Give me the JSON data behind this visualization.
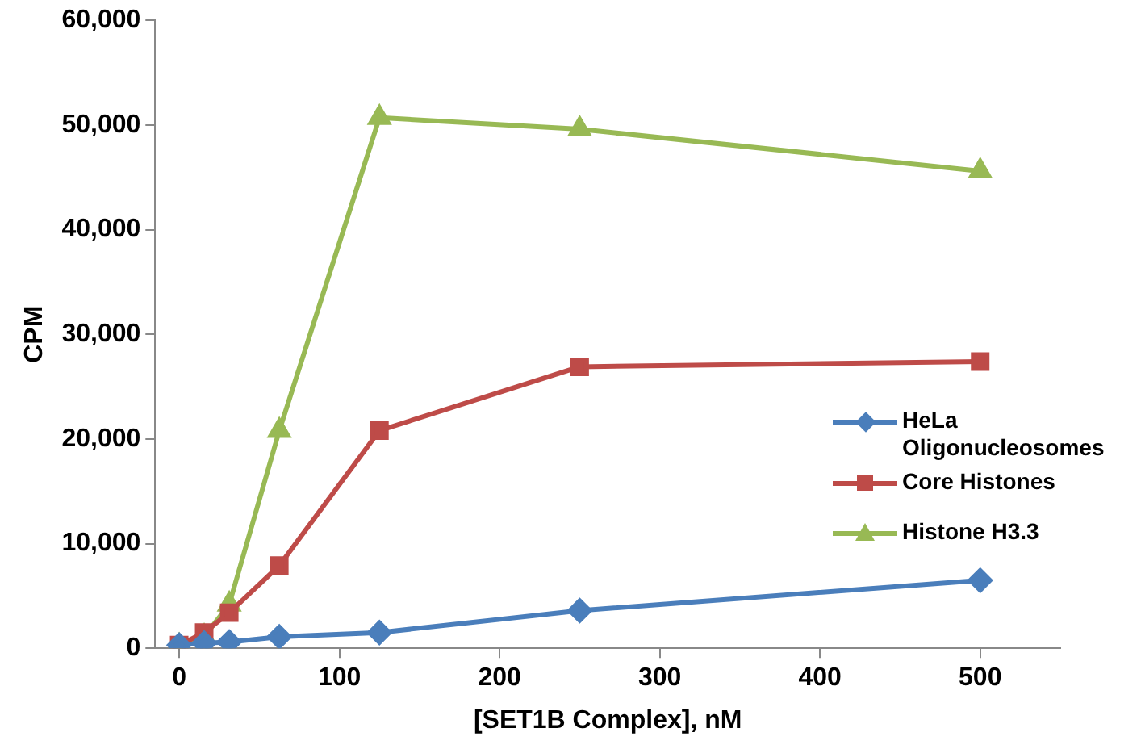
{
  "chart_data": {
    "type": "line",
    "xlabel": "[SET1B Complex], nM",
    "ylabel": "CPM",
    "x": [
      0,
      15.6,
      31.25,
      62.5,
      125,
      250,
      500
    ],
    "series": [
      {
        "name": "HeLa Oligonucleosomes",
        "color": "#4a7ebb",
        "marker": "diamond",
        "values": [
          300,
          500,
          600,
          1100,
          1500,
          3600,
          6500
        ]
      },
      {
        "name": "Core Histones",
        "color": "#be4b48",
        "marker": "square",
        "values": [
          300,
          1500,
          3400,
          7900,
          20800,
          26900,
          27400
        ]
      },
      {
        "name": "Histone H3.3",
        "color": "#98b954",
        "marker": "triangle",
        "values": [
          200,
          1100,
          4200,
          20800,
          50700,
          49600,
          45600
        ]
      }
    ],
    "xlim": [
      -15,
      550
    ],
    "xticks": [
      0,
      100,
      200,
      300,
      400,
      500
    ],
    "ylim": [
      0,
      60000
    ],
    "yticks": [
      {
        "value": 0,
        "label": "0"
      },
      {
        "value": 10000,
        "label": "10,000"
      },
      {
        "value": 20000,
        "label": "20,000"
      },
      {
        "value": 30000,
        "label": "30,000"
      },
      {
        "value": 40000,
        "label": "40,000"
      },
      {
        "value": 50000,
        "label": "50,000"
      },
      {
        "value": 60000,
        "label": "60,000"
      }
    ],
    "grid": false,
    "legend": "right"
  }
}
